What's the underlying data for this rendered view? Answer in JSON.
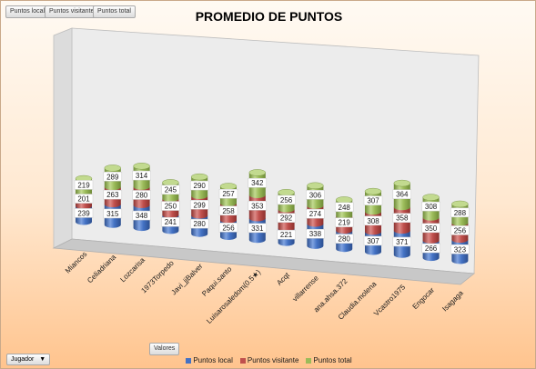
{
  "toolbar": {
    "fields": [
      "Puntos local",
      "Puntos visitante",
      "Puntos total"
    ],
    "values_button": "Valores",
    "row_field": "Jugador",
    "row_field_arrow": "▼"
  },
  "colors": {
    "local": "#4472c4",
    "visitante": "#c0504d",
    "total": "#9bbb59"
  },
  "chart_data": {
    "type": "bar",
    "stacked": true,
    "three_d": true,
    "title": "PROMEDIO DE PUNTOS",
    "xlabel": "",
    "ylabel": "",
    "legend_position": "bottom",
    "categories": [
      "Miancos",
      "Celiadriana",
      "Lozcarisa",
      "1973Torpedo",
      "Javi_jjBalver",
      "Paqui.santo",
      "Luisarosaledom(0.5★)",
      "Acqt",
      "villarrense",
      "ana.ahsa.372",
      "Claudia.molena",
      "Vcastro1975",
      "Engocar",
      "Isagaga"
    ],
    "series": [
      {
        "name": "Puntos local",
        "values": [
          239,
          315,
          348,
          241,
          280,
          256,
          331,
          221,
          338,
          280,
          307,
          371,
          266,
          323
        ]
      },
      {
        "name": "Puntos visitante",
        "values": [
          201,
          263,
          280,
          250,
          299,
          258,
          353,
          292,
          274,
          219,
          308,
          358,
          350,
          256
        ]
      },
      {
        "name": "Puntos total",
        "values": [
          219,
          289,
          314,
          245,
          290,
          257,
          342,
          256,
          306,
          248,
          307,
          364,
          308,
          288
        ]
      }
    ]
  }
}
